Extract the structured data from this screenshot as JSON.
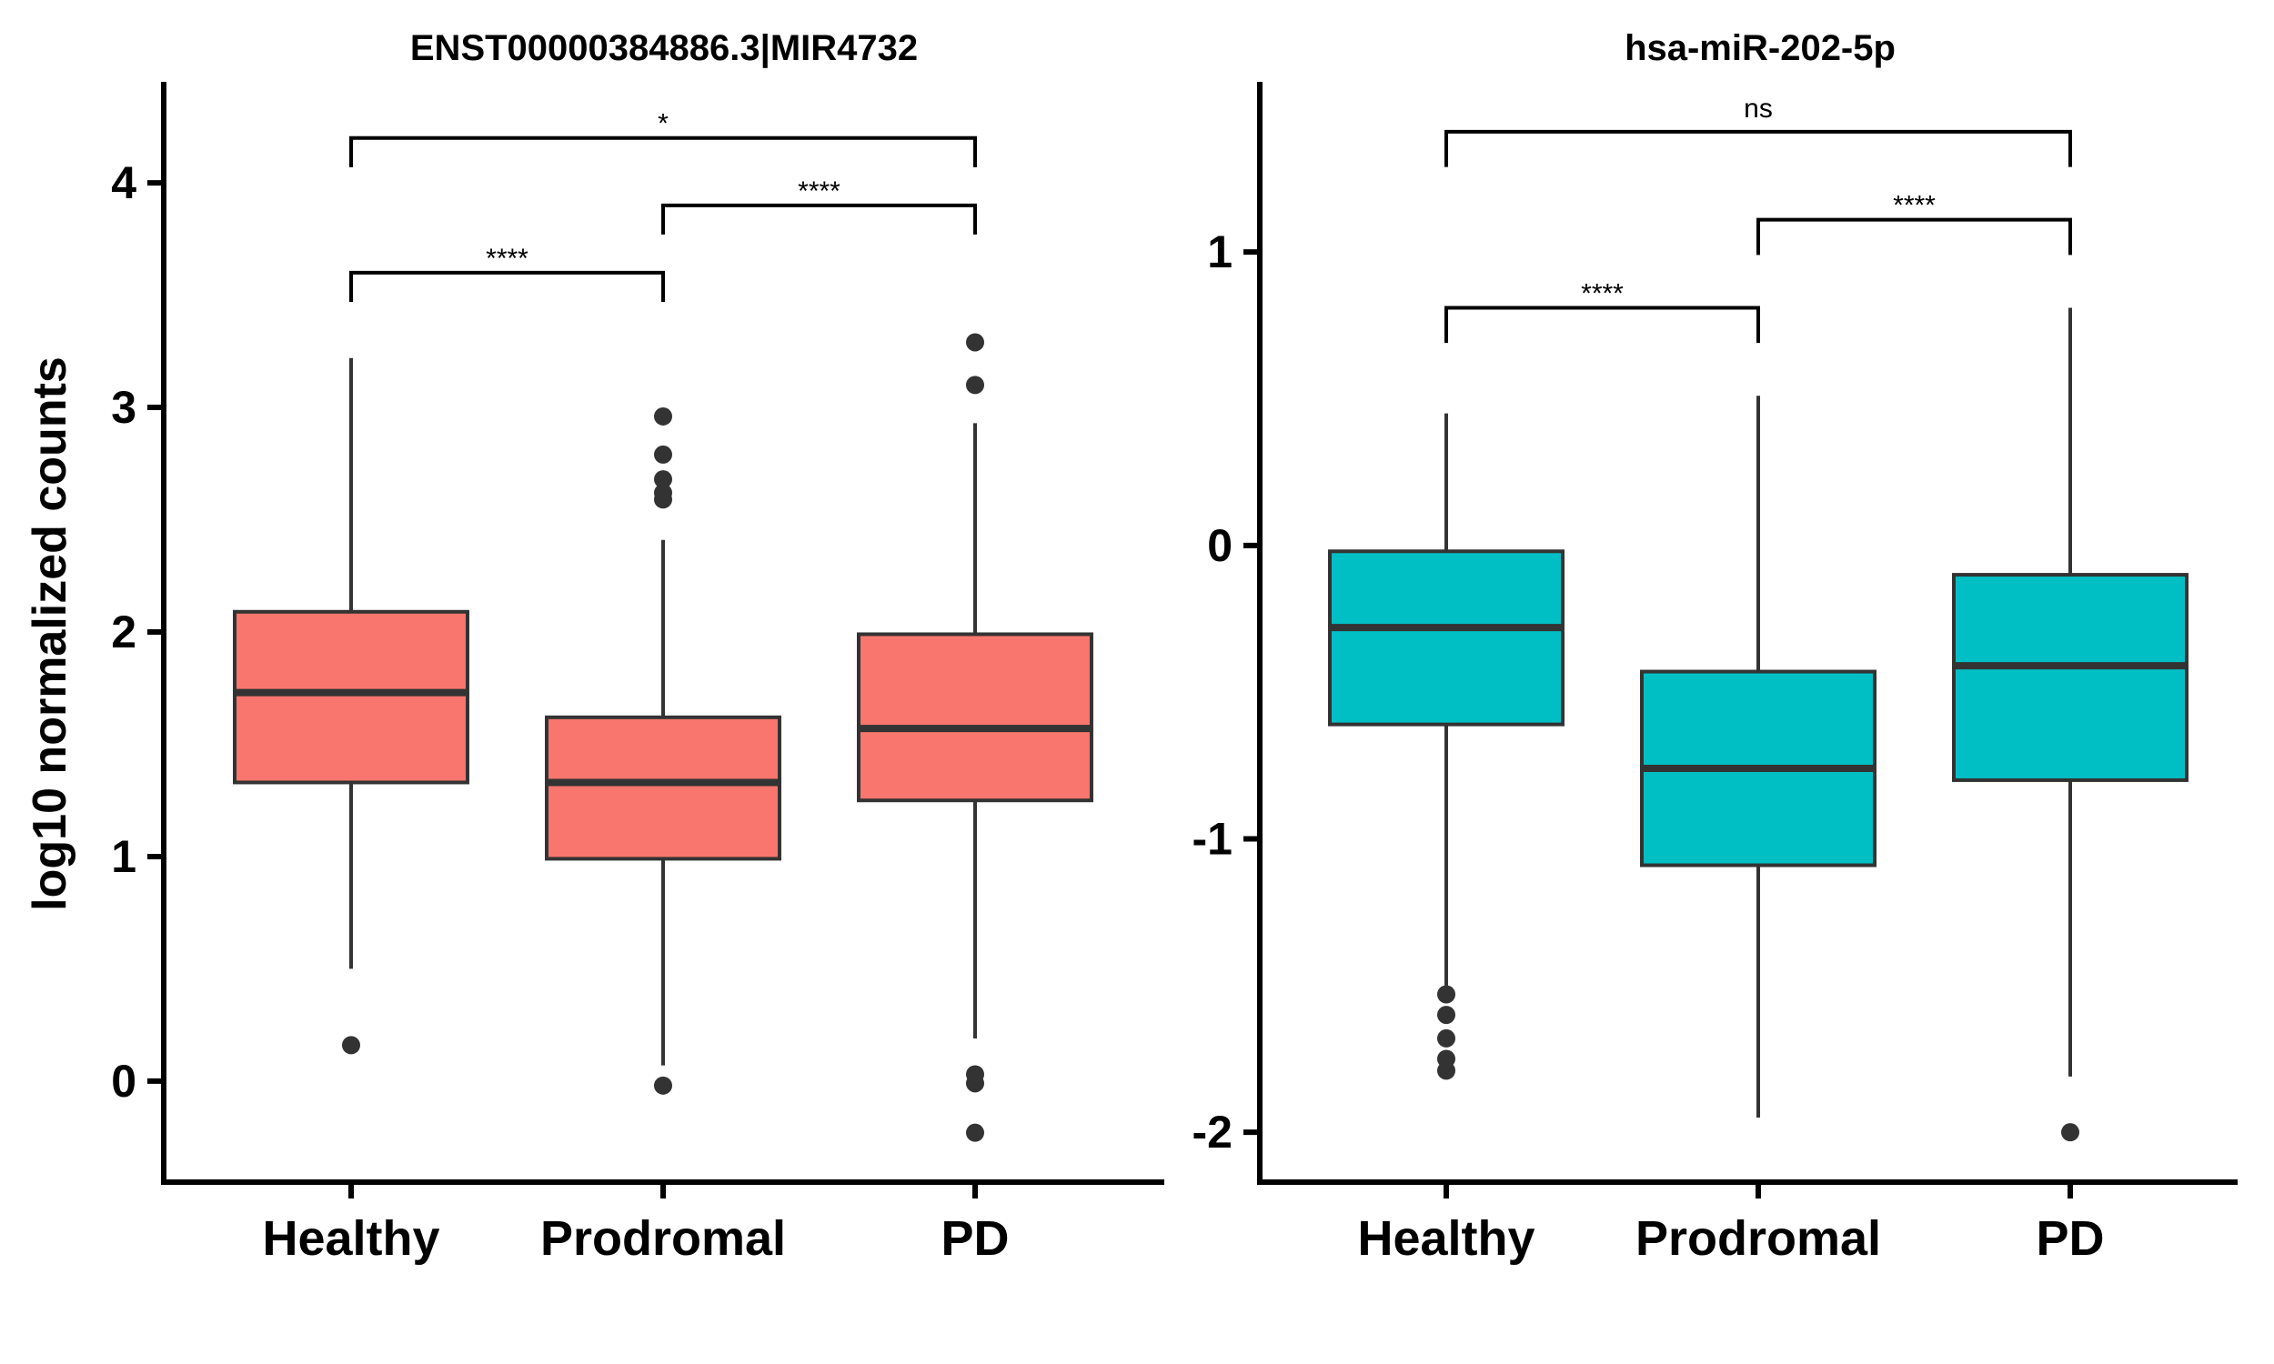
{
  "ylabel": "log10 normalized counts",
  "chart_data": [
    {
      "type": "box",
      "title": "ENST00000384886.3|MIR4732",
      "categories": [
        "Healthy",
        "Prodromal",
        "PD"
      ],
      "fill_color": "#F8766D",
      "ylim": [
        -0.45,
        4.45
      ],
      "yticks": [
        0,
        1,
        2,
        3,
        4
      ],
      "boxes": [
        {
          "category": "Healthy",
          "whisker_low": 0.5,
          "q1": 1.33,
          "median": 1.73,
          "q3": 2.09,
          "whisker_high": 3.22,
          "outliers": [
            0.16
          ]
        },
        {
          "category": "Prodromal",
          "whisker_low": 0.07,
          "q1": 0.99,
          "median": 1.33,
          "q3": 1.62,
          "whisker_high": 2.41,
          "outliers": [
            -0.02,
            2.59,
            2.62,
            2.68,
            2.79,
            2.96
          ]
        },
        {
          "category": "PD",
          "whisker_low": 0.19,
          "q1": 1.25,
          "median": 1.57,
          "q3": 1.99,
          "whisker_high": 2.93,
          "outliers": [
            -0.23,
            -0.01,
            0.03,
            3.1,
            3.29
          ]
        }
      ],
      "comparisons": [
        {
          "groups": [
            "Healthy",
            "Prodromal"
          ],
          "label": "****",
          "y": 3.6,
          "tip": 3.47
        },
        {
          "groups": [
            "Prodromal",
            "PD"
          ],
          "label": "****",
          "y": 3.9,
          "tip": 3.77
        },
        {
          "groups": [
            "Healthy",
            "PD"
          ],
          "label": "*",
          "y": 4.2,
          "tip": 4.07
        }
      ]
    },
    {
      "type": "box",
      "title": "hsa-miR-202-5p",
      "categories": [
        "Healthy",
        "Prodromal",
        "PD"
      ],
      "fill_color": "#00BFC4",
      "ylim": [
        -2.17,
        1.58
      ],
      "yticks": [
        -2,
        -1,
        0,
        1
      ],
      "ytick_labels": [
        "-2",
        "-1",
        "0",
        "1"
      ],
      "boxes": [
        {
          "category": "Healthy",
          "whisker_low": -1.5,
          "q1": -0.61,
          "median": -0.28,
          "q3": -0.02,
          "whisker_high": 0.45,
          "outliers": [
            -1.53,
            -1.6,
            -1.68,
            -1.75,
            -1.79
          ]
        },
        {
          "category": "Prodromal",
          "whisker_low": -1.95,
          "q1": -1.09,
          "median": -0.76,
          "q3": -0.43,
          "whisker_high": 0.51,
          "outliers": []
        },
        {
          "category": "PD",
          "whisker_low": -1.81,
          "q1": -0.8,
          "median": -0.41,
          "q3": -0.1,
          "whisker_high": 0.81,
          "outliers": [
            -2.0
          ]
        }
      ],
      "comparisons": [
        {
          "groups": [
            "Healthy",
            "Prodromal"
          ],
          "label": "****",
          "y": 0.81,
          "tip": 0.69
        },
        {
          "groups": [
            "Prodromal",
            "PD"
          ],
          "label": "****",
          "y": 1.11,
          "tip": 0.99
        },
        {
          "groups": [
            "Healthy",
            "PD"
          ],
          "label": "ns",
          "y": 1.41,
          "tip": 1.29
        }
      ]
    }
  ]
}
